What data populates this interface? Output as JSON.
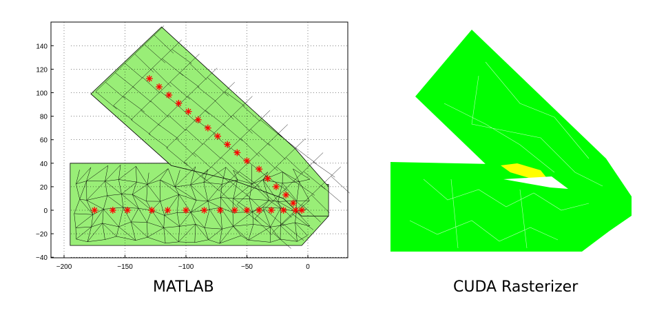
{
  "captions": {
    "left": "MATLAB",
    "right": "CUDA Rasterizer"
  },
  "chart_data": {
    "type": "scatter",
    "title": "",
    "xlabel": "",
    "ylabel": "",
    "xlim": [
      -210,
      35
    ],
    "ylim": [
      -40,
      158
    ],
    "grid": true,
    "x_ticks": [
      -200,
      -150,
      -100,
      -50,
      0
    ],
    "y_ticks": [
      -40,
      -20,
      0,
      20,
      40,
      60,
      80,
      100,
      120,
      140
    ],
    "x_tick_labels": [
      "−200",
      "−150",
      "−100",
      "−50",
      "0"
    ],
    "y_tick_labels": [
      "−40",
      "−20",
      "0",
      "20",
      "40",
      "60",
      "80",
      "100",
      "120",
      "140"
    ],
    "mesh_color": "#99ee77",
    "marker_color": "#ff0000",
    "nodes_horizontal": [
      [
        -175,
        0
      ],
      [
        -160,
        0
      ],
      [
        -148,
        0
      ],
      [
        -128,
        0
      ],
      [
        -115,
        0
      ],
      [
        -100,
        0
      ],
      [
        -85,
        0
      ],
      [
        -72,
        0
      ],
      [
        -60,
        0
      ],
      [
        -50,
        0
      ],
      [
        -40,
        0
      ],
      [
        -30,
        0
      ],
      [
        -20,
        0
      ],
      [
        -10,
        0
      ],
      [
        -5,
        0
      ]
    ],
    "nodes_diagonal": [
      [
        -130,
        112
      ],
      [
        -122,
        105
      ],
      [
        -114,
        98
      ],
      [
        -106,
        91
      ],
      [
        -98,
        84
      ],
      [
        -90,
        77
      ],
      [
        -82,
        70
      ],
      [
        -74,
        63
      ],
      [
        -66,
        56
      ],
      [
        -58,
        49
      ],
      [
        -50,
        42
      ],
      [
        -40,
        35
      ],
      [
        -33,
        27
      ],
      [
        -26,
        20
      ],
      [
        -18,
        13
      ],
      [
        -12,
        6
      ]
    ]
  },
  "raster": {
    "fill_color": "#00ff00",
    "overlap_color": "#ffff00"
  }
}
